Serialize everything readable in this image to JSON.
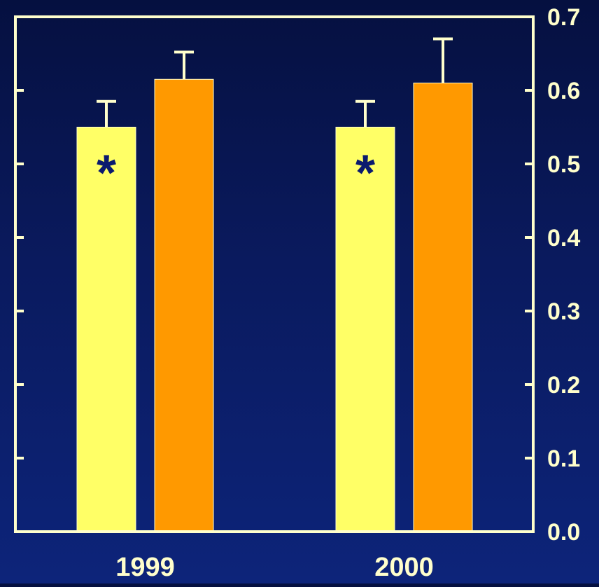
{
  "chart_data": {
    "type": "bar",
    "categories": [
      "1999",
      "2000"
    ],
    "series": [
      {
        "color": "#ffff66",
        "values": [
          0.55,
          0.55
        ],
        "error": [
          0.035,
          0.035
        ],
        "markers": [
          "*",
          "*"
        ]
      },
      {
        "color": "#ff9900",
        "values": [
          0.615,
          0.61
        ],
        "error": [
          0.037,
          0.06
        ],
        "markers": [
          "",
          ""
        ]
      }
    ],
    "yticks": [
      "0.0",
      "0.1",
      "0.2",
      "0.3",
      "0.4",
      "0.5",
      "0.6",
      "0.7"
    ],
    "ylim": [
      0,
      0.7
    ],
    "grid": false,
    "legend": "none",
    "y_axis_side": "right",
    "colors": {
      "background_top": "#051040",
      "background_bottom": "#0d247a",
      "axis": "#ffffcc",
      "text": "#ffffcc",
      "marker": "#0b1a6e"
    }
  }
}
